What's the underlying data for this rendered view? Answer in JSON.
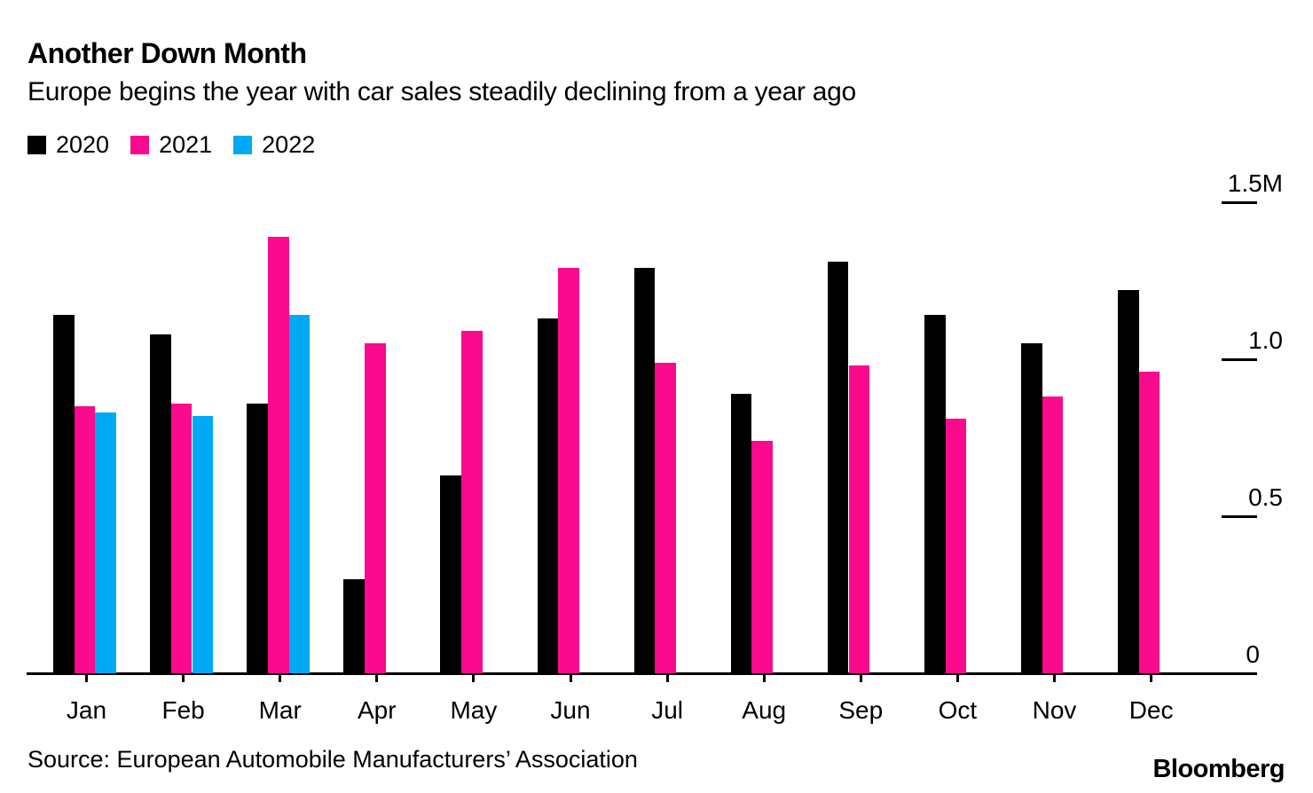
{
  "header": {
    "title": "Another Down Month",
    "subtitle": "Europe begins the year with car sales steadily declining from a year ago"
  },
  "footer": {
    "source": "Source: European Automobile Manufacturers’ Association",
    "brand": "Bloomberg"
  },
  "chart_data": {
    "type": "bar",
    "title": "Another Down Month",
    "subtitle": "Europe begins the year with car sales steadily declining from a year ago",
    "unit": "millions of cars",
    "categories": [
      "Jan",
      "Feb",
      "Mar",
      "Apr",
      "May",
      "Jun",
      "Jul",
      "Aug",
      "Sep",
      "Oct",
      "Nov",
      "Dec"
    ],
    "series": [
      {
        "name": "2020",
        "color": "#000000",
        "values": [
          1.14,
          1.08,
          0.86,
          0.3,
          0.63,
          1.13,
          1.29,
          0.89,
          1.31,
          1.14,
          1.05,
          1.22
        ]
      },
      {
        "name": "2021",
        "color": "#fa0a8c",
        "values": [
          0.85,
          0.86,
          1.39,
          1.05,
          1.09,
          1.29,
          0.99,
          0.74,
          0.98,
          0.81,
          0.88,
          0.96
        ]
      },
      {
        "name": "2022",
        "color": "#00a9f4",
        "values": [
          0.83,
          0.82,
          1.14,
          null,
          null,
          null,
          null,
          null,
          null,
          null,
          null,
          null
        ]
      }
    ],
    "y_ticks": [
      {
        "label": "1.5M",
        "value": 1.5
      },
      {
        "label": "1.0",
        "value": 1.0
      },
      {
        "label": "0.5",
        "value": 0.5
      },
      {
        "label": "0",
        "value": 0
      }
    ],
    "ylim": [
      0,
      1.5
    ],
    "grid": false,
    "legend_position": "top-left"
  }
}
